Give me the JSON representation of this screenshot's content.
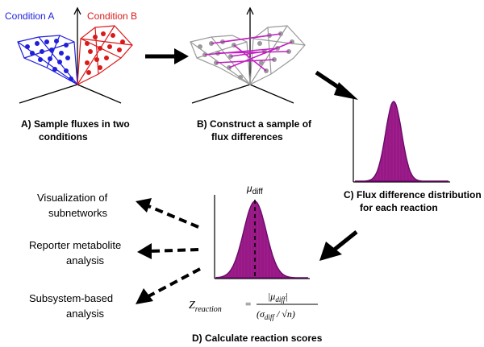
{
  "colors": {
    "condition_a": "#1f1fdc",
    "condition_b": "#d91a1a",
    "difference_lines": "#c21ec2",
    "grey_points": "#9a9a9a",
    "distribution_fill": "#a21d8e",
    "distribution_stroke": "#6a0b6a"
  },
  "panel_a": {
    "condition_a_label": "Condition A",
    "condition_b_label": "Condition B",
    "caption_line1": "A)  Sample fluxes in two",
    "caption_line2": "conditions"
  },
  "panel_b": {
    "caption_line1": "B)  Construct a sample of",
    "caption_line2": "flux differences"
  },
  "panel_c": {
    "caption_line1": "C)  Flux difference distribution",
    "caption_line2": "for each reaction"
  },
  "panel_d": {
    "mu_symbol": "μ",
    "mu_subscript": "diff",
    "formula": {
      "z_main": "Z",
      "z_sub": "reaction",
      "equals": "=",
      "numerator": "|μ",
      "numerator_sub": "diff",
      "numerator_end": "|",
      "denominator": "(σ",
      "denominator_sub": "diff",
      "denominator_end": " / √n)"
    },
    "caption": "D)  Calculate reaction scores"
  },
  "outcomes": {
    "visualization_line1": "Visualization of",
    "visualization_line2": "subnetworks",
    "reporter_line1": "Reporter metabolite",
    "reporter_line2": "analysis",
    "subsystem_line1": "Subsystem-based",
    "subsystem_line2": "analysis"
  }
}
